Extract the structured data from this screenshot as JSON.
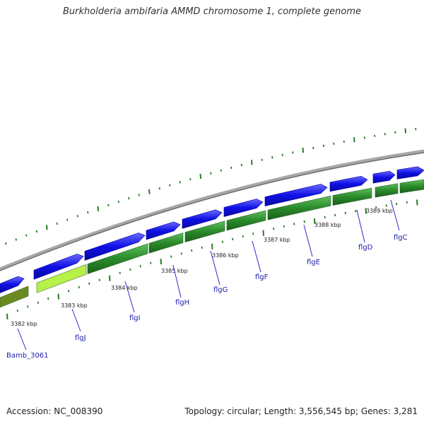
{
  "title": "Burkholderia ambifaria AMMD chromosome 1, complete genome",
  "accession_label": "Accession: NC_008390",
  "stats_label": "Topology: circular; Length: 3,556,545 bp; Genes: 3,281",
  "colors": {
    "backbone": "#8c8c8c",
    "cds_forward": "#1010e6",
    "gene_track": "#2a8a2a",
    "gene_track_light": "#b8f04a",
    "gene_track_olive": "#6a8a20",
    "tick": "#2a7a2a",
    "label_line": "#2a2ad0"
  },
  "kbp_ticks": [
    "3382 kbp",
    "3383 kbp",
    "3384 kbp",
    "3385 kbp",
    "3386 kbp",
    "3387 kbp",
    "3388 kbp",
    "3389 kbp"
  ],
  "genes": [
    "Bamb_3061",
    "flgJ",
    "flgI",
    "flgH",
    "flgG",
    "flgF",
    "flgE",
    "flgD",
    "flgC"
  ]
}
